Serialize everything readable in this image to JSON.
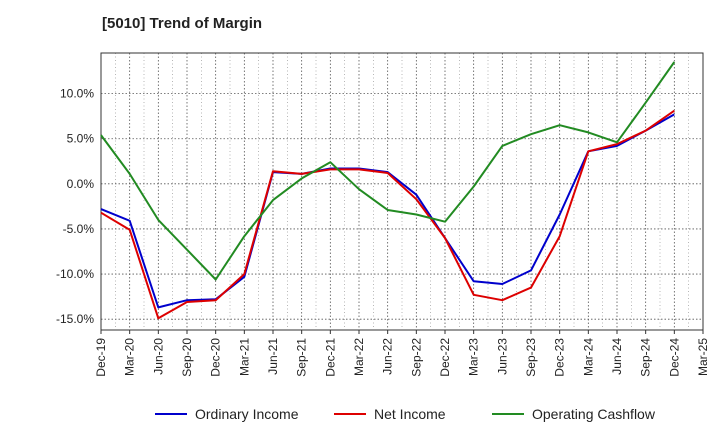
{
  "chart_data": {
    "type": "line",
    "title": "[5010]  Trend of Margin",
    "xlabel": "",
    "ylabel": "",
    "x": [
      "Dec-19",
      "Mar-20",
      "Jun-20",
      "Sep-20",
      "Dec-20",
      "Mar-21",
      "Jun-21",
      "Sep-21",
      "Dec-21",
      "Mar-22",
      "Jun-22",
      "Sep-22",
      "Dec-22",
      "Mar-23",
      "Jun-23",
      "Sep-23",
      "Dec-23",
      "Mar-24",
      "Jun-24",
      "Sep-24",
      "Dec-24",
      "Mar-25"
    ],
    "ylim": [
      -16.2,
      14.5
    ],
    "yticks": [
      -15,
      -10,
      -5,
      0,
      5,
      10
    ],
    "ytick_labels": [
      "-15.0%",
      "-10.0%",
      "-5.0%",
      "0.0%",
      "5.0%",
      "10.0%"
    ],
    "grid": true,
    "legend_position": "bottom",
    "series": [
      {
        "name": "Ordinary Income",
        "color": "#0000cc",
        "values": [
          -2.8,
          -4.1,
          -13.7,
          -12.9,
          -12.8,
          -10.3,
          1.3,
          1.1,
          1.7,
          1.7,
          1.3,
          -1.2,
          -6.0,
          -10.8,
          -11.1,
          -9.6,
          -3.4,
          3.6,
          4.2,
          5.9,
          7.7,
          null
        ]
      },
      {
        "name": "Net Income",
        "color": "#dd0000",
        "values": [
          -3.2,
          -5.1,
          -14.9,
          -13.1,
          -12.9,
          -10.0,
          1.4,
          1.1,
          1.6,
          1.6,
          1.2,
          -1.7,
          -6.0,
          -12.3,
          -12.9,
          -11.5,
          -5.8,
          3.6,
          4.4,
          5.9,
          8.1,
          null
        ]
      },
      {
        "name": "Operating Cashflow",
        "color": "#228b22",
        "values": [
          5.4,
          1.1,
          -4.0,
          -7.3,
          -10.6,
          -5.8,
          -1.8,
          0.6,
          2.4,
          -0.6,
          -2.9,
          -3.4,
          -4.2,
          -0.3,
          4.2,
          5.5,
          6.5,
          5.7,
          4.6,
          9.0,
          13.5,
          null
        ]
      }
    ]
  }
}
